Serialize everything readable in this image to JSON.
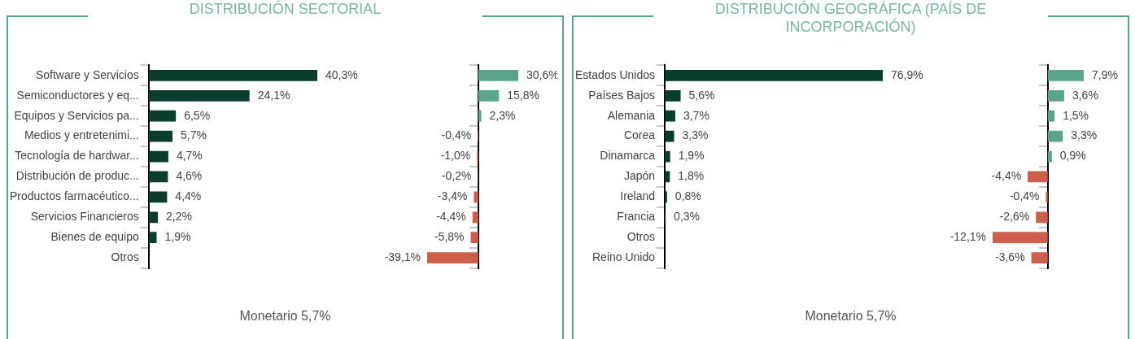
{
  "chart_data": [
    {
      "type": "bar",
      "orientation": "horizontal",
      "title": "DISTRIBUCIÓN SECTORIAL",
      "categories": [
        "Software y Servicios",
        "Semiconductores y eq...",
        "Equipos y Servicios pa...",
        "Medios y entretenimi...",
        "Tecnología de hardwar...",
        "Distribución de produc...",
        "Productos farmacéutico...",
        "Servicios Financieros",
        "Bienes de equipo",
        "Otros"
      ],
      "values": [
        40.3,
        24.1,
        6.5,
        5.7,
        4.7,
        4.6,
        4.4,
        2.2,
        1.9,
        null
      ],
      "value_labels": [
        "40,3%",
        "24,1%",
        "6,5%",
        "5,7%",
        "4,7%",
        "4,6%",
        "4,4%",
        "2,2%",
        "1,9%",
        null
      ],
      "color": "#0b3d2f",
      "annotations": [
        "Monetario 5,7%"
      ]
    },
    {
      "type": "bar",
      "orientation": "horizontal",
      "categories": [
        null,
        null,
        null,
        null,
        null,
        null,
        null,
        null,
        null,
        null
      ],
      "values": [
        30.6,
        15.8,
        2.3,
        -0.4,
        -1.0,
        -0.2,
        -3.4,
        -4.4,
        -5.8,
        -39.1
      ],
      "value_labels": [
        "30,6%",
        "15,8%",
        "2,3%",
        "-0,4%",
        "-1,0%",
        "-0,2%",
        "-3,4%",
        "-4,4%",
        "-5,8%",
        "-39,1%"
      ],
      "colors": [
        "#5aa58a",
        "#5aa58a",
        "#5aa58a",
        "#cd5f4a",
        "#cd5f4a",
        "#cd5f4a",
        "#cd5f4a",
        "#cd5f4a",
        "#cd5f4a",
        "#cd5f4a"
      ]
    },
    {
      "type": "bar",
      "orientation": "horizontal",
      "title": "DISTRIBUCIÓN GEOGRÁFICA (PAÍS DE INCORPORACIÓN)",
      "categories": [
        "Estados Unidos",
        "Países Bajos",
        "Alemania",
        "Corea",
        "Dinamarca",
        "Japón",
        "Ireland",
        "Francia",
        "Otros",
        "Reino Unido"
      ],
      "values": [
        76.9,
        5.6,
        3.7,
        3.3,
        1.9,
        1.8,
        0.8,
        0.3,
        null,
        null
      ],
      "value_labels": [
        "76,9%",
        "5,6%",
        "3,7%",
        "3,3%",
        "1,9%",
        "1,8%",
        "0,8%",
        "0,3%",
        null,
        null
      ],
      "color": "#0b3d2f",
      "annotations": [
        "Monetario 5,7%"
      ]
    },
    {
      "type": "bar",
      "orientation": "horizontal",
      "categories": [
        null,
        null,
        null,
        null,
        null,
        null,
        null,
        null,
        null,
        null
      ],
      "values": [
        7.9,
        3.6,
        1.5,
        3.3,
        0.9,
        -4.4,
        -0.4,
        -2.6,
        -12.1,
        -3.6
      ],
      "value_labels": [
        "7,9%",
        "3,6%",
        "1,5%",
        "3,3%",
        "0,9%",
        "-4,4%",
        "-0,4%",
        "-2,6%",
        "-12,1%",
        "-3,6%"
      ],
      "colors": [
        "#5aa58a",
        "#5aa58a",
        "#5aa58a",
        "#5aa58a",
        "#5aa58a",
        "#cd5f4a",
        "#cd5f4a",
        "#cd5f4a",
        "#cd5f4a",
        "#cd5f4a"
      ]
    }
  ]
}
